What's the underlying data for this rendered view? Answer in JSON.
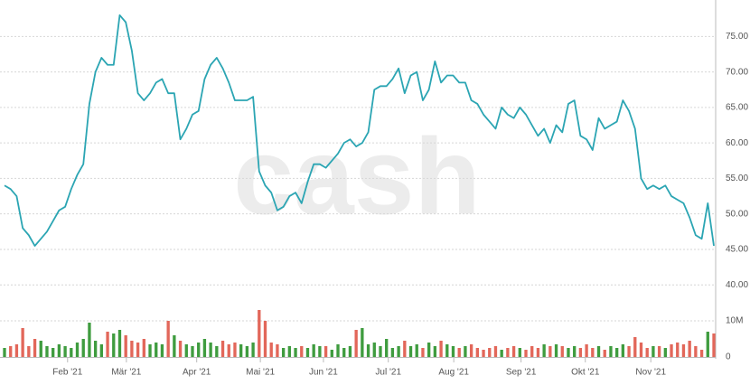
{
  "chart_data": {
    "type": "line",
    "watermark": "cash",
    "x": [
      0,
      1,
      2,
      3,
      4,
      5,
      6,
      7,
      8,
      9,
      10,
      11,
      12,
      13,
      14,
      15,
      16,
      17,
      18,
      19,
      20,
      21,
      22,
      23,
      24,
      25,
      26,
      27,
      28,
      29,
      30,
      31,
      32,
      33,
      34,
      35,
      36,
      37,
      38,
      39,
      40,
      41,
      42,
      43,
      44,
      45,
      46,
      47,
      48,
      49,
      50,
      51,
      52,
      53,
      54,
      55,
      56,
      57,
      58,
      59,
      60,
      61,
      62,
      63,
      64,
      65,
      66,
      67,
      68,
      69,
      70,
      71,
      72,
      73,
      74,
      75,
      76,
      77,
      78,
      79,
      80,
      81,
      82,
      83,
      84,
      85,
      86,
      87,
      88,
      89,
      90,
      91,
      92,
      93,
      94,
      95,
      96,
      97,
      98,
      99,
      100,
      101,
      102,
      103,
      104,
      105,
      106,
      107,
      108,
      109,
      110,
      111,
      112,
      113,
      114,
      115,
      116,
      117
    ],
    "xlim": [
      0,
      117
    ],
    "xticks": [
      {
        "value": 10.4,
        "label": "Feb '21"
      },
      {
        "value": 20.1,
        "label": "Mär '21"
      },
      {
        "value": 31.7,
        "label": "Apr '21"
      },
      {
        "value": 42.2,
        "label": "Mai '21"
      },
      {
        "value": 52.6,
        "label": "Jun '21"
      },
      {
        "value": 63.3,
        "label": "Jul '21"
      },
      {
        "value": 74.1,
        "label": "Aug '21"
      },
      {
        "value": 85.2,
        "label": "Sep '21"
      },
      {
        "value": 95.8,
        "label": "Okt '21"
      },
      {
        "value": 106.6,
        "label": "Nov '21"
      }
    ],
    "ylim": [
      38.5,
      79.5
    ],
    "yticks": [
      {
        "value": 40,
        "label": "40.00"
      },
      {
        "value": 45,
        "label": "45.00"
      },
      {
        "value": 50,
        "label": "50.00"
      },
      {
        "value": 55,
        "label": "55.00"
      },
      {
        "value": 60,
        "label": "60.00"
      },
      {
        "value": 65,
        "label": "65.00"
      },
      {
        "value": 70,
        "label": "70.00"
      },
      {
        "value": 75,
        "label": "75.00"
      }
    ],
    "y2lim": [
      0,
      14000000
    ],
    "y2ticks": [
      {
        "value": 0,
        "label": "0"
      },
      {
        "value": 10000000,
        "label": "10M"
      }
    ],
    "grid": true,
    "series": [
      {
        "color": "#2ba5b3",
        "values": [
          54,
          53.5,
          52.5,
          48,
          47,
          45.5,
          46.5,
          47.5,
          49,
          50.5,
          51,
          53.5,
          55.5,
          57,
          65.5,
          70,
          72,
          71,
          71,
          78,
          77,
          73,
          67,
          66,
          67,
          68.5,
          69,
          67,
          67,
          60.5,
          62,
          64,
          64.5,
          69,
          71,
          72,
          70.5,
          68.5,
          66,
          66,
          66,
          66.5,
          56,
          54,
          53,
          50.5,
          51,
          52.5,
          53,
          51.5,
          54.5,
          57,
          57,
          56.5,
          57.5,
          58.5,
          60,
          60.5,
          59.5,
          60,
          61.5,
          67.5,
          68,
          68,
          69,
          70.5,
          67,
          69.5,
          70,
          66,
          67.5,
          71.5,
          68.5,
          69.5,
          69.5,
          68.5,
          68.5,
          66,
          65.5,
          64,
          63,
          62,
          65,
          64,
          63.5,
          65,
          64,
          62.5,
          61,
          62,
          60,
          62.5,
          61.5,
          65.5,
          66,
          61,
          60.5,
          59,
          63.5,
          62,
          62.5,
          63,
          66,
          64.5,
          62,
          55,
          53.5,
          54,
          53.5,
          54,
          52.5,
          52,
          51.5,
          49.5,
          47,
          46.5,
          51.5,
          45.5
        ]
      },
      {
        "type": "bar",
        "axis": "y2",
        "up_color": "#3f9c3f",
        "down_color": "#e2675a",
        "values": [
          2500000,
          3000000,
          3500000,
          8000000,
          3000000,
          5000000,
          4500000,
          3000000,
          2500000,
          3500000,
          3000000,
          2500000,
          4000000,
          5000000,
          9500000,
          4500000,
          3500000,
          7000000,
          6500000,
          7500000,
          6000000,
          4500000,
          4000000,
          5000000,
          3500000,
          4000000,
          3500000,
          10000000,
          6000000,
          4500000,
          3500000,
          3000000,
          4000000,
          5000000,
          4000000,
          3000000,
          4500000,
          3500000,
          4000000,
          3500000,
          3000000,
          4000000,
          13000000,
          10000000,
          4000000,
          3500000,
          2500000,
          3000000,
          2500000,
          3000000,
          2500000,
          3500000,
          3000000,
          3000000,
          2000000,
          3500000,
          2500000,
          3000000,
          7500000,
          8000000,
          3500000,
          4000000,
          3000000,
          5000000,
          2500000,
          3000000,
          4500000,
          3000000,
          3500000,
          2500000,
          4000000,
          3000000,
          4500000,
          3500000,
          3000000,
          2500000,
          3000000,
          3500000,
          2500000,
          2000000,
          2500000,
          3000000,
          2000000,
          2500000,
          3000000,
          2500000,
          2000000,
          3000000,
          2500000,
          3500000,
          3000000,
          3500000,
          3000000,
          2500000,
          3000000,
          2500000,
          3500000,
          2500000,
          3000000,
          2000000,
          3000000,
          2500000,
          3500000,
          3000000,
          5500000,
          4000000,
          2500000,
          3000000,
          3000000,
          2500000,
          3500000,
          4000000,
          3500000,
          4500000,
          3000000,
          2000000,
          7000000,
          6500000
        ]
      }
    ]
  }
}
